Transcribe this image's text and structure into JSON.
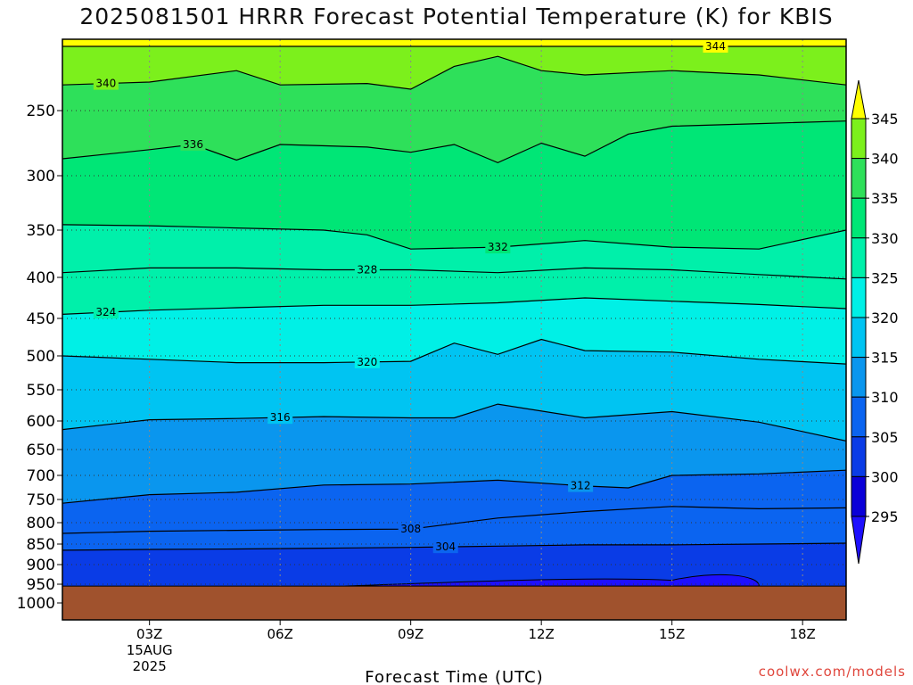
{
  "title": "2025081501 HRRR Forecast Potential Temperature (K) for KBIS",
  "credit": "coolwx.com/models",
  "chart_data": {
    "type": "heatmap",
    "title": "2025081501 HRRR Forecast Potential Temperature (K) for KBIS",
    "xlabel": "Forecast Time (UTC)",
    "ylabel": "",
    "xlim": [
      1,
      19
    ],
    "ylim_pressure": [
      200,
      1015
    ],
    "x_ticks": [
      {
        "label": "03Z",
        "value": 3
      },
      {
        "label": "06Z",
        "value": 6
      },
      {
        "label": "09Z",
        "value": 9
      },
      {
        "label": "12Z",
        "value": 12
      },
      {
        "label": "15Z",
        "value": 15
      },
      {
        "label": "18Z",
        "value": 18
      }
    ],
    "x_sub_labels": [
      "15AUG",
      "2025"
    ],
    "y_ticks": [
      250,
      300,
      350,
      400,
      450,
      500,
      550,
      600,
      650,
      700,
      750,
      800,
      850,
      900,
      950,
      1000
    ],
    "surface_pressure": 955,
    "colorbar": {
      "levels": [
        295,
        300,
        305,
        310,
        315,
        320,
        325,
        330,
        335,
        340,
        345
      ],
      "labels": [
        "345",
        "340",
        "335",
        "330",
        "325",
        "320",
        "315",
        "310",
        "305",
        "300",
        "295"
      ],
      "colors": [
        "#1e10ff",
        "#0a00d8",
        "#0a3ce6",
        "#0b64f0",
        "#0a96ee",
        "#00c4f2",
        "#00f0e6",
        "#00f0aa",
        "#00e676",
        "#2ee05a",
        "#7cf01c",
        "#aae81e",
        "#ffff00"
      ]
    },
    "contours": [
      {
        "theta": 304,
        "label": "304",
        "label_pos": [
          9.8,
          0.5
        ],
        "points": [
          [
            1,
            865
          ],
          [
            3,
            863
          ],
          [
            5,
            862
          ],
          [
            7,
            860
          ],
          [
            9,
            858
          ],
          [
            11,
            855
          ],
          [
            13,
            852
          ],
          [
            15,
            852
          ],
          [
            17,
            850
          ],
          [
            19,
            848
          ]
        ]
      },
      {
        "theta": 308,
        "label": "308",
        "label_pos": [
          9.0,
          0.5
        ],
        "points": [
          [
            1,
            825
          ],
          [
            3,
            820
          ],
          [
            5,
            818
          ],
          [
            7,
            816
          ],
          [
            9,
            815
          ],
          [
            11,
            790
          ],
          [
            13,
            776
          ],
          [
            15,
            765
          ],
          [
            17,
            770
          ],
          [
            19,
            768
          ]
        ]
      },
      {
        "theta": 312,
        "label": "312",
        "label_pos": [
          12.9,
          0.5
        ],
        "points": [
          [
            1,
            758
          ],
          [
            3,
            740
          ],
          [
            5,
            735
          ],
          [
            7,
            720
          ],
          [
            9,
            718
          ],
          [
            11,
            710
          ],
          [
            13,
            722
          ],
          [
            14,
            726
          ],
          [
            15,
            700
          ],
          [
            17,
            697
          ],
          [
            19,
            690
          ]
        ]
      },
      {
        "theta": 316,
        "label": "316",
        "label_pos": [
          6.0,
          0.5
        ],
        "points": [
          [
            1,
            615
          ],
          [
            3,
            598
          ],
          [
            5,
            596
          ],
          [
            7,
            593
          ],
          [
            9,
            595
          ],
          [
            10,
            595
          ],
          [
            11,
            573
          ],
          [
            13,
            595
          ],
          [
            15,
            585
          ],
          [
            17,
            602
          ],
          [
            19,
            635
          ]
        ]
      },
      {
        "theta": 320,
        "label": "320",
        "label_pos": [
          8.0,
          0.5
        ],
        "points": [
          [
            1,
            500
          ],
          [
            3,
            505
          ],
          [
            5,
            510
          ],
          [
            7,
            510
          ],
          [
            9,
            508
          ],
          [
            10,
            483
          ],
          [
            11,
            498
          ],
          [
            12,
            478
          ],
          [
            13,
            493
          ],
          [
            15,
            495
          ],
          [
            17,
            505
          ],
          [
            19,
            512
          ]
        ]
      },
      {
        "theta": 324,
        "label": "324",
        "label_pos": [
          2.0,
          0.5
        ],
        "points": [
          [
            1,
            445
          ],
          [
            3,
            440
          ],
          [
            5,
            437
          ],
          [
            7,
            434
          ],
          [
            9,
            434
          ],
          [
            11,
            431
          ],
          [
            13,
            425
          ],
          [
            15,
            429
          ],
          [
            17,
            433
          ],
          [
            19,
            438
          ]
        ]
      },
      {
        "theta": 328,
        "label": "328",
        "label_pos": [
          8.0,
          0.5
        ],
        "points": [
          [
            1,
            395
          ],
          [
            3,
            390
          ],
          [
            5,
            390
          ],
          [
            7,
            392
          ],
          [
            9,
            392
          ],
          [
            11,
            395
          ],
          [
            13,
            390
          ],
          [
            15,
            392
          ],
          [
            17,
            397
          ],
          [
            19,
            402
          ]
        ]
      },
      {
        "theta": 332,
        "label": "332",
        "label_pos": [
          11.0,
          0.5
        ],
        "points": [
          [
            1,
            345
          ],
          [
            3,
            346
          ],
          [
            5,
            348
          ],
          [
            7,
            350
          ],
          [
            8,
            355
          ],
          [
            9,
            370
          ],
          [
            11,
            368
          ],
          [
            13,
            361
          ],
          [
            15,
            368
          ],
          [
            17,
            370
          ],
          [
            19,
            350
          ]
        ]
      },
      {
        "theta": 336,
        "label": "336",
        "label_pos": [
          4.0,
          0.5
        ],
        "points": [
          [
            1,
            287
          ],
          [
            3,
            280
          ],
          [
            4,
            276
          ],
          [
            5,
            288
          ],
          [
            6,
            276
          ],
          [
            8,
            278
          ],
          [
            9,
            282
          ],
          [
            10,
            276
          ],
          [
            11,
            290
          ],
          [
            12,
            275
          ],
          [
            13,
            285
          ],
          [
            14,
            268
          ],
          [
            15,
            262
          ],
          [
            17,
            260
          ],
          [
            19,
            258
          ]
        ]
      },
      {
        "theta": 340,
        "label": "340",
        "label_pos": [
          2.0,
          0.5
        ],
        "points": [
          [
            1,
            232
          ],
          [
            3,
            230
          ],
          [
            5,
            222
          ],
          [
            6,
            232
          ],
          [
            8,
            231
          ],
          [
            9,
            235
          ],
          [
            10,
            219
          ],
          [
            11,
            212
          ],
          [
            12,
            222
          ],
          [
            13,
            225
          ],
          [
            15,
            222
          ],
          [
            17,
            225
          ],
          [
            19,
            232
          ]
        ]
      },
      {
        "theta": 344,
        "label": "344",
        "label_pos": [
          16.0,
          0.5
        ],
        "points": [
          [
            1,
            205
          ],
          [
            3,
            205
          ],
          [
            5,
            205
          ],
          [
            7,
            205
          ],
          [
            9,
            205
          ],
          [
            11,
            205
          ],
          [
            13,
            205
          ],
          [
            15,
            205
          ],
          [
            17,
            205
          ],
          [
            19,
            205
          ]
        ]
      }
    ],
    "vertical_profile": [
      {
        "p": 200,
        "theta": 345
      },
      {
        "p": 215,
        "theta": 341
      },
      {
        "p": 250,
        "theta": 337
      },
      {
        "p": 300,
        "theta": 333
      },
      {
        "p": 350,
        "theta": 331
      },
      {
        "p": 400,
        "theta": 328
      },
      {
        "p": 450,
        "theta": 323
      },
      {
        "p": 500,
        "theta": 320
      },
      {
        "p": 550,
        "theta": 318
      },
      {
        "p": 600,
        "theta": 316
      },
      {
        "p": 650,
        "theta": 314
      },
      {
        "p": 700,
        "theta": 312
      },
      {
        "p": 750,
        "theta": 311
      },
      {
        "p": 800,
        "theta": 309
      },
      {
        "p": 850,
        "theta": 305
      },
      {
        "p": 900,
        "theta": 302
      },
      {
        "p": 955,
        "theta": 301
      }
    ],
    "grid": true,
    "legend": "colorbar-right"
  }
}
